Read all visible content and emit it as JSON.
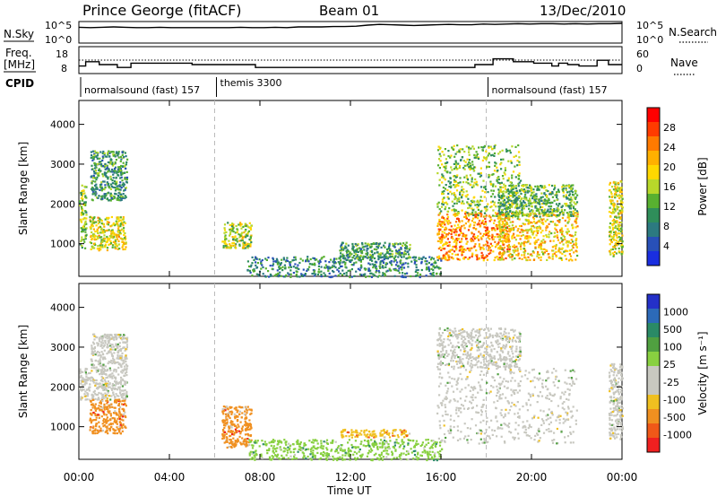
{
  "header": {
    "station": "Prince George (fitACF)",
    "beam": "Beam 01",
    "date": "13/Dec/2010"
  },
  "noise_panel": {
    "label": "N.Sky",
    "right_label": "N.Search",
    "tick_top": "10^5",
    "tick_bottom": "10^0",
    "sky_noise_log10": [
      3.9,
      3.8,
      3.9,
      4.0,
      3.9,
      3.8,
      3.8,
      3.9,
      3.8,
      3.8,
      3.8,
      3.8,
      3.8,
      3.8,
      3.9,
      3.8,
      3.8,
      3.9,
      3.8,
      4.0,
      4.0,
      4.0,
      4.1,
      4.1,
      4.2,
      4.5,
      4.7,
      4.6,
      4.5,
      4.4,
      4.5,
      4.6,
      4.7,
      4.6,
      4.6,
      4.8,
      4.7,
      4.8,
      4.9,
      4.8,
      4.9,
      4.9,
      4.8,
      4.9,
      4.8,
      4.9,
      4.9,
      5.0
    ]
  },
  "freq_panel": {
    "label": "Freq.",
    "unit": "[MHz]",
    "right_label": "Nave",
    "left_ticks": [
      "18",
      "8"
    ],
    "right_ticks": [
      "60",
      "0"
    ],
    "freq_mhz": [
      {
        "t": 0.0,
        "v": 12
      },
      {
        "t": 0.3,
        "v": 15
      },
      {
        "t": 0.9,
        "v": 13
      },
      {
        "t": 1.7,
        "v": 11
      },
      {
        "t": 2.3,
        "v": 14
      },
      {
        "t": 5.0,
        "v": 13
      },
      {
        "t": 7.8,
        "v": 11
      },
      {
        "t": 17.5,
        "v": 13
      },
      {
        "t": 18.3,
        "v": 17
      },
      {
        "t": 19.2,
        "v": 15
      },
      {
        "t": 20.1,
        "v": 14
      },
      {
        "t": 20.9,
        "v": 12
      },
      {
        "t": 21.2,
        "v": 14
      },
      {
        "t": 21.6,
        "v": 13
      },
      {
        "t": 22.1,
        "v": 12
      },
      {
        "t": 22.9,
        "v": 16
      },
      {
        "t": 23.4,
        "v": 13
      },
      {
        "t": 24.0,
        "v": 13
      }
    ],
    "nave_reference": 30
  },
  "cpid": {
    "label": "CPID",
    "segments": [
      {
        "label": "normalsound (fast)  157",
        "start": 0.0
      },
      {
        "label": "themis 3300",
        "start": 6.0
      },
      {
        "label": "normalsound (fast)  157",
        "start": 18.0
      }
    ]
  },
  "colorbars": {
    "power": {
      "title": "Power [dB]",
      "ticks": [
        "28",
        "24",
        "20",
        "16",
        "12",
        "8",
        "4"
      ],
      "colors": [
        "#ff0000",
        "#ff3b00",
        "#ff7a00",
        "#ffb000",
        "#ffd800",
        "#b8d82a",
        "#58b030",
        "#2f8e5a",
        "#2c7a80",
        "#2850b8",
        "#1a2ee0"
      ]
    },
    "velocity": {
      "title": "Velocity [m s⁻¹]",
      "ticks": [
        "1000",
        "500",
        "100",
        "25",
        "-25",
        "-100",
        "-500",
        "-1000"
      ],
      "colors": [
        "#2430c8",
        "#2c6ab8",
        "#2a8a66",
        "#50a040",
        "#88d040",
        "#c8c8c0",
        "#c8c8c0",
        "#f0c020",
        "#f09020",
        "#f05818",
        "#f02020"
      ]
    }
  },
  "chart_data": [
    {
      "type": "heatmap",
      "name": "power",
      "xlabel": "",
      "ylabel": "Slant Range [km]",
      "yticks": [
        1000,
        2000,
        3000,
        4000
      ],
      "ylim": [
        180,
        4600
      ],
      "xlim": [
        0,
        24
      ],
      "xticks": [
        "00:00",
        "04:00",
        "08:00",
        "12:00",
        "16:00",
        "20:00",
        "00:00"
      ],
      "colorbar": "Power [dB]",
      "echo_regions": [
        {
          "t0": 0.0,
          "t1": 0.3,
          "r0": 900,
          "r1": 2500,
          "power_db": 14
        },
        {
          "t0": 0.45,
          "t1": 2.05,
          "r0": 850,
          "r1": 1700,
          "power_db": 18
        },
        {
          "t0": 0.5,
          "t1": 2.1,
          "r0": 2100,
          "r1": 3350,
          "power_db": 10
        },
        {
          "t0": 6.3,
          "t1": 7.6,
          "r0": 900,
          "r1": 1550,
          "power_db": 16
        },
        {
          "t0": 7.4,
          "t1": 16.0,
          "r0": 180,
          "r1": 700,
          "power_db": 8
        },
        {
          "t0": 11.5,
          "t1": 14.6,
          "r0": 650,
          "r1": 1050,
          "power_db": 10
        },
        {
          "t0": 15.8,
          "t1": 19.0,
          "r0": 600,
          "r1": 1800,
          "power_db": 24
        },
        {
          "t0": 15.8,
          "t1": 19.5,
          "r0": 1700,
          "r1": 3500,
          "power_db": 14
        },
        {
          "t0": 18.5,
          "t1": 22.0,
          "r0": 600,
          "r1": 1800,
          "power_db": 20
        },
        {
          "t0": 18.5,
          "t1": 22.0,
          "r0": 1700,
          "r1": 2500,
          "power_db": 12
        },
        {
          "t0": 23.4,
          "t1": 24.0,
          "r0": 700,
          "r1": 2600,
          "power_db": 18
        }
      ]
    },
    {
      "type": "heatmap",
      "name": "velocity",
      "xlabel": "Time UT",
      "ylabel": "Slant Range [km]",
      "yticks": [
        1000,
        2000,
        3000,
        4000
      ],
      "ylim": [
        180,
        4600
      ],
      "xlim": [
        0,
        24
      ],
      "xticks": [
        "00:00",
        "04:00",
        "08:00",
        "12:00",
        "16:00",
        "20:00",
        "00:00"
      ],
      "colorbar": "Velocity [m s⁻¹]",
      "echo_regions": [
        {
          "t0": 0.0,
          "t1": 2.1,
          "r0": 1700,
          "r1": 2500,
          "velocity": 0
        },
        {
          "t0": 0.45,
          "t1": 2.05,
          "r0": 850,
          "r1": 1700,
          "velocity": -300
        },
        {
          "t0": 0.5,
          "t1": 2.1,
          "r0": 2500,
          "r1": 3350,
          "velocity": 0
        },
        {
          "t0": 6.3,
          "t1": 7.6,
          "r0": 500,
          "r1": 1550,
          "velocity": -300
        },
        {
          "t0": 7.4,
          "t1": 16.0,
          "r0": 180,
          "r1": 700,
          "velocity": 50
        },
        {
          "t0": 11.5,
          "t1": 14.6,
          "r0": 750,
          "r1": 950,
          "velocity": -100
        },
        {
          "t0": 15.8,
          "t1": 22.0,
          "r0": 600,
          "r1": 2500,
          "velocity": 0
        },
        {
          "t0": 15.8,
          "t1": 19.5,
          "r0": 2500,
          "r1": 3500,
          "velocity": 0
        },
        {
          "t0": 23.4,
          "t1": 24.0,
          "r0": 700,
          "r1": 2600,
          "velocity": 0
        }
      ]
    }
  ]
}
